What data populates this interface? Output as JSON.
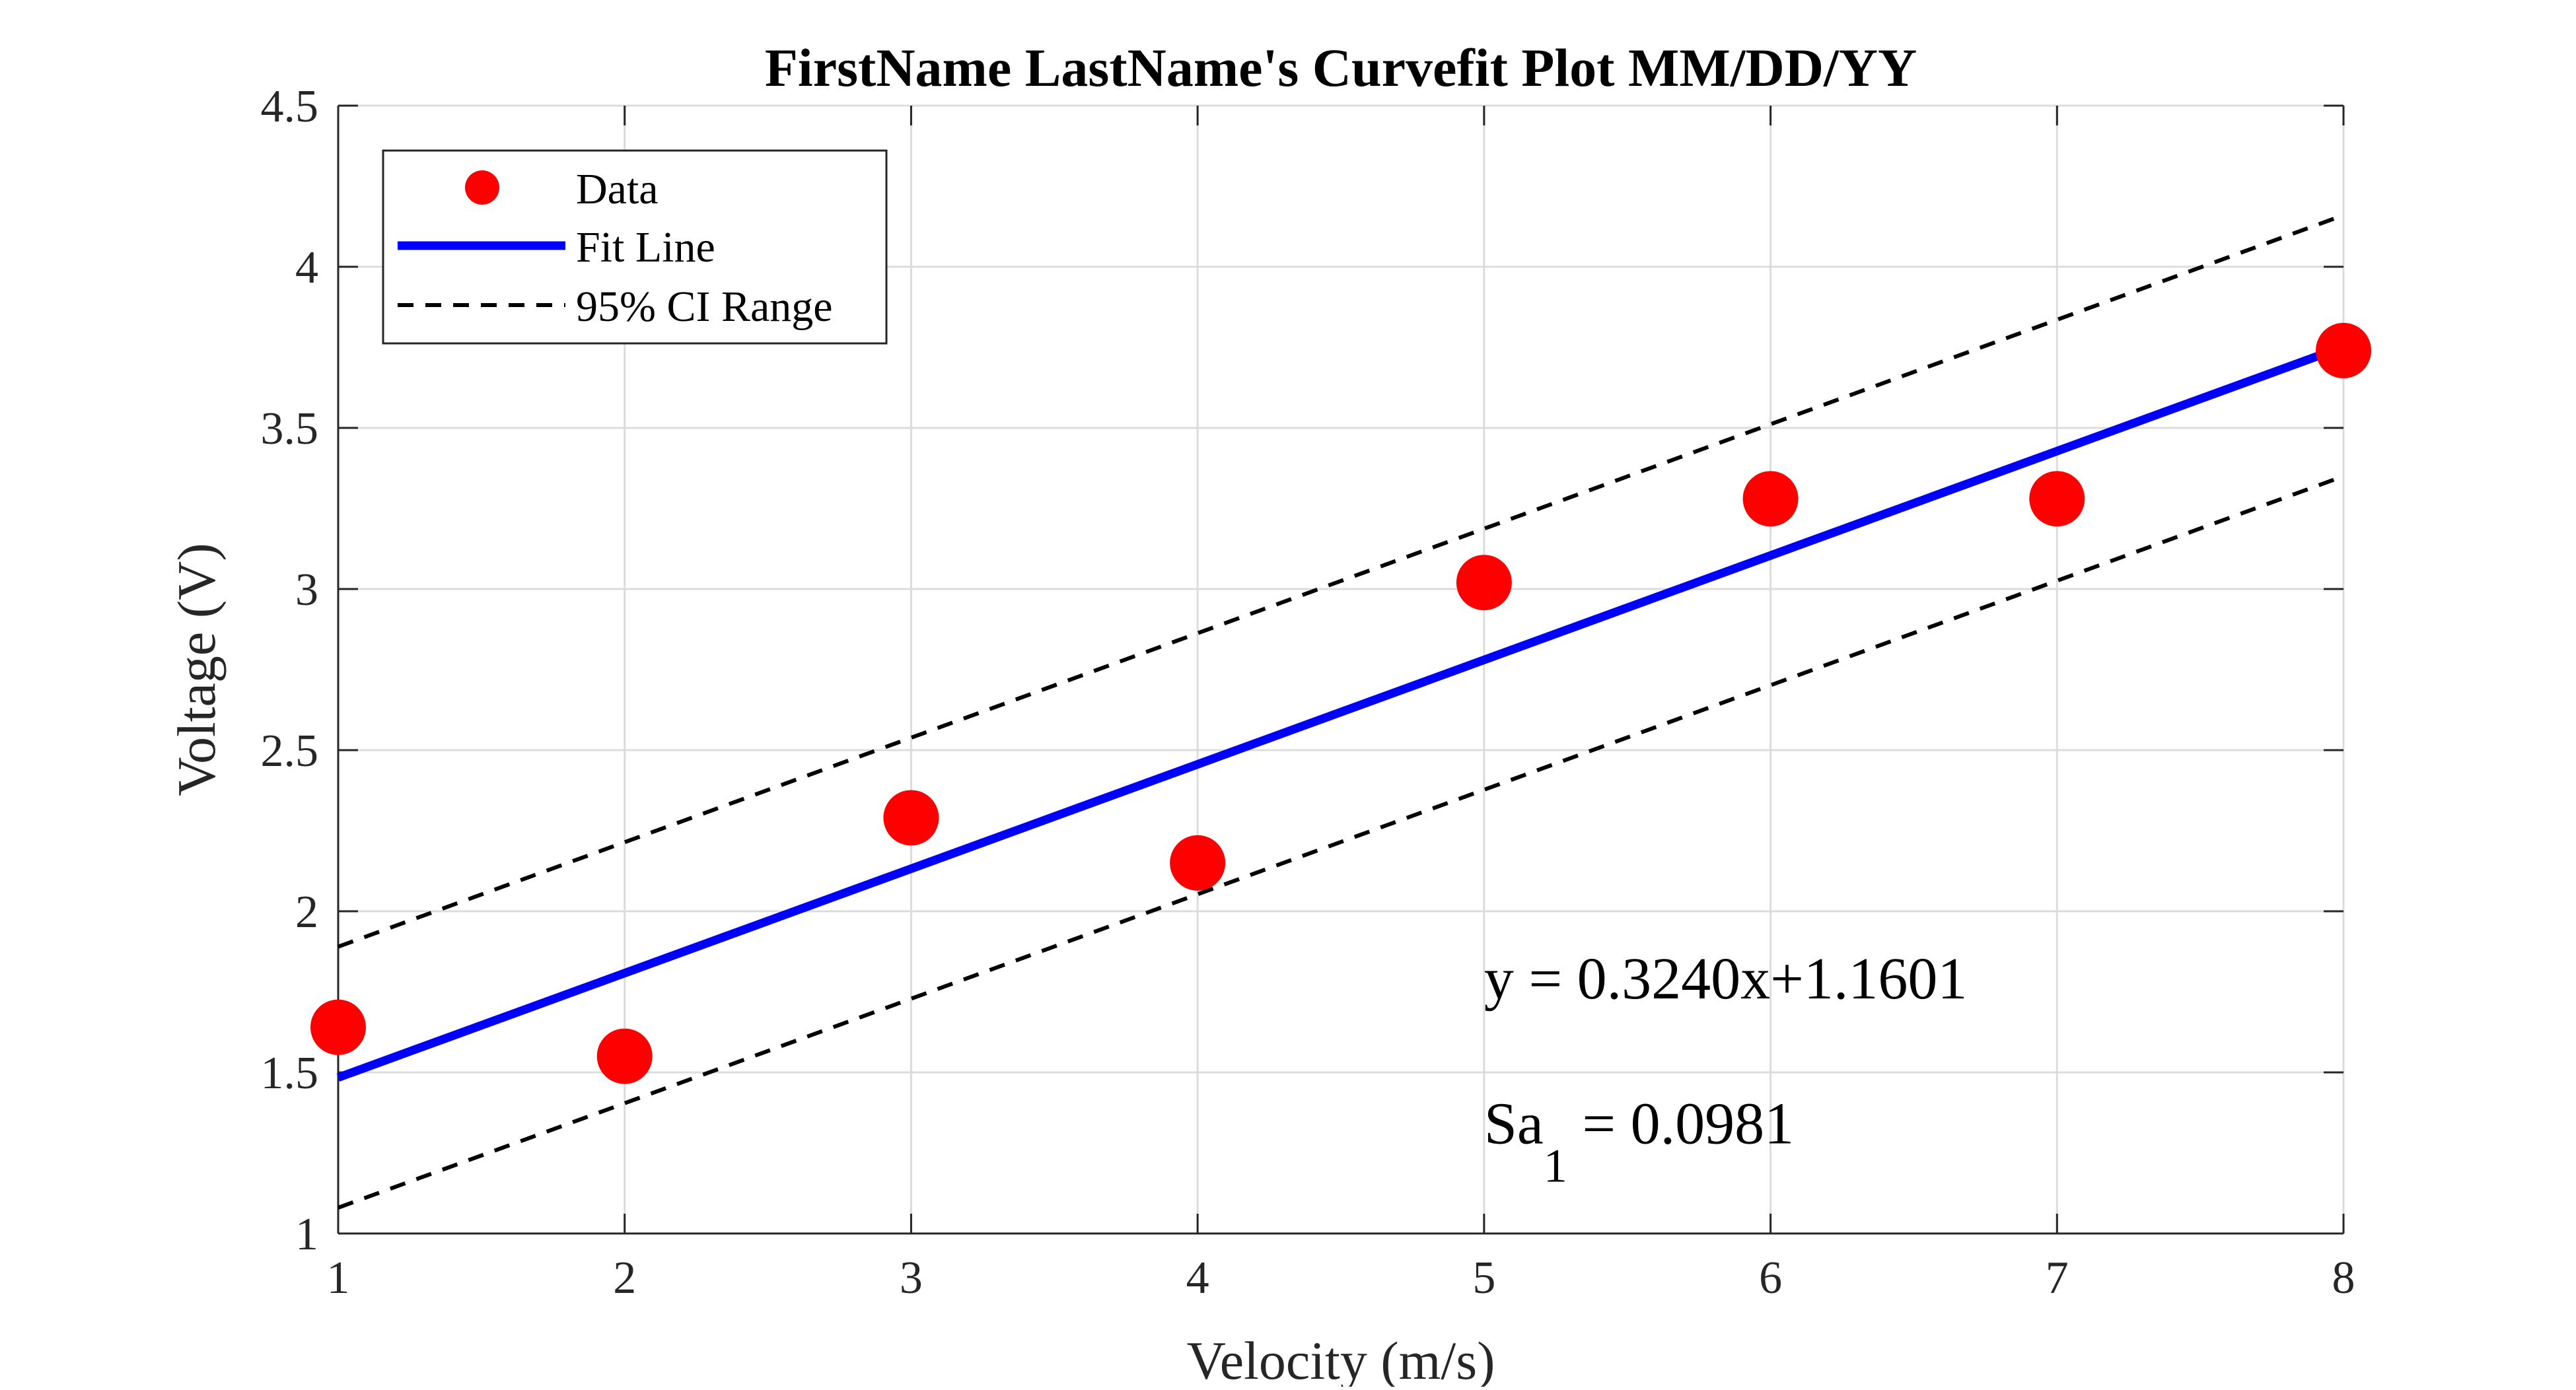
{
  "chart_data": {
    "type": "scatter",
    "title": "FirstName LastName's Curvefit Plot MM/DD/YY",
    "xlabel": "Velocity (m/s)",
    "ylabel": "Voltage (V)",
    "xlim": [
      1,
      8
    ],
    "ylim": [
      1,
      4.5
    ],
    "xticks": [
      1,
      2,
      3,
      4,
      5,
      6,
      7,
      8
    ],
    "yticks": [
      1,
      1.5,
      2,
      2.5,
      3,
      3.5,
      4,
      4.5
    ],
    "xtick_labels": [
      "1",
      "2",
      "3",
      "4",
      "5",
      "6",
      "7",
      "8"
    ],
    "ytick_labels": [
      "1",
      "1.5",
      "2",
      "2.5",
      "3",
      "3.5",
      "4",
      "4.5"
    ],
    "grid": true,
    "legend_position": "top-left",
    "series": [
      {
        "name": "Data",
        "kind": "markers",
        "color": "#ff0000",
        "x": [
          1,
          2,
          3,
          4,
          5,
          6,
          7,
          8
        ],
        "y": [
          1.64,
          1.55,
          2.29,
          2.15,
          3.02,
          3.28,
          3.28,
          3.74
        ]
      },
      {
        "name": "Fit Line",
        "kind": "line",
        "style": "solid",
        "color": "#0000ff",
        "x": [
          1,
          8
        ],
        "y": [
          1.484,
          3.752
        ]
      },
      {
        "name": "95% CI Range",
        "kind": "line",
        "style": "dashed",
        "color": "#000000",
        "x": [
          1,
          8
        ],
        "y": [
          1.89,
          4.16
        ]
      },
      {
        "kind": "line",
        "style": "dashed",
        "color": "#000000",
        "x": [
          1,
          8
        ],
        "y": [
          1.08,
          3.35
        ]
      }
    ],
    "legend": [
      "Data",
      "Fit Line",
      "95% CI Range"
    ],
    "annotations": [
      {
        "text": "y = 0.3240x+1.1601",
        "x": 5,
        "y": 1.73
      },
      {
        "text": "Sa",
        "subscript": "1",
        "suffix": " = 0.0981",
        "x": 5,
        "y": 1.28
      }
    ]
  }
}
